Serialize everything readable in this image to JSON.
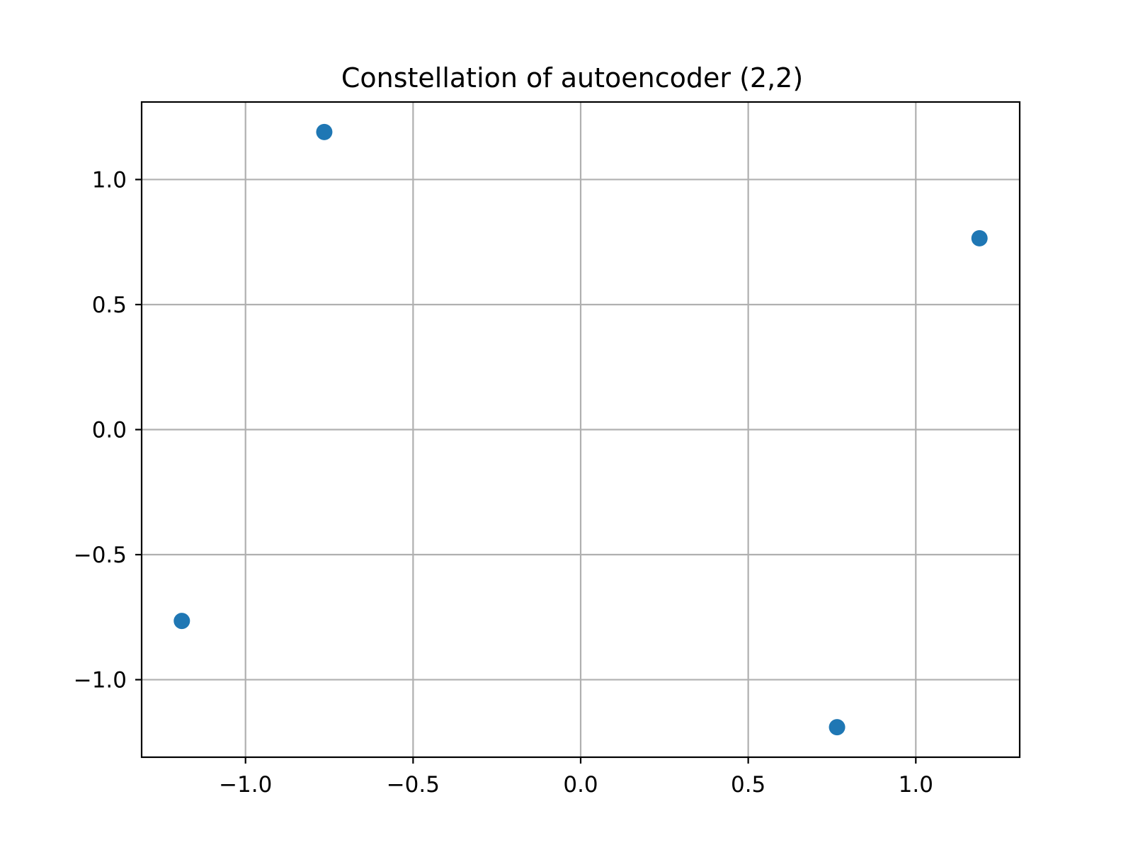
{
  "chart_data": {
    "type": "scatter",
    "title": "Constellation of autoencoder (2,2)",
    "xlabel": "",
    "ylabel": "",
    "xlim": [
      -1.31,
      1.31
    ],
    "ylim": [
      -1.31,
      1.31
    ],
    "grid": true,
    "x_ticks": [
      -1.0,
      -0.5,
      0.0,
      0.5,
      1.0
    ],
    "x_tick_labels": [
      "−1.0",
      "−0.5",
      "0.0",
      "0.5",
      "1.0"
    ],
    "y_ticks": [
      -1.0,
      -0.5,
      0.0,
      0.5,
      1.0
    ],
    "y_tick_labels": [
      "−1.0",
      "−0.5",
      "0.0",
      "0.5",
      "1.0"
    ],
    "series": [
      {
        "color": "#1f77b4",
        "points": [
          {
            "x": -0.765,
            "y": 1.19
          },
          {
            "x": 1.19,
            "y": 0.765
          },
          {
            "x": -1.19,
            "y": -0.765
          },
          {
            "x": 0.765,
            "y": -1.19
          }
        ]
      }
    ]
  }
}
